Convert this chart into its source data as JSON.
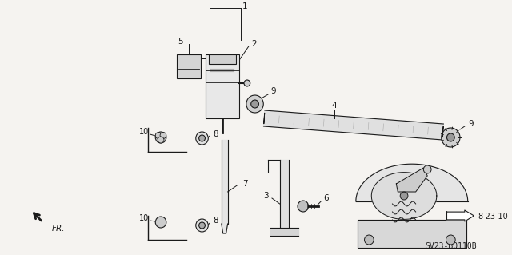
{
  "bg_color": "#f5f3f0",
  "line_color": "#1a1a1a",
  "text_color": "#1a1a1a",
  "diagram_code": "SV23-B0110B",
  "revision": "8-23-10",
  "figsize": [
    6.4,
    3.19
  ],
  "dpi": 100,
  "xlim": [
    0,
    640
  ],
  "ylim": [
    0,
    319
  ]
}
